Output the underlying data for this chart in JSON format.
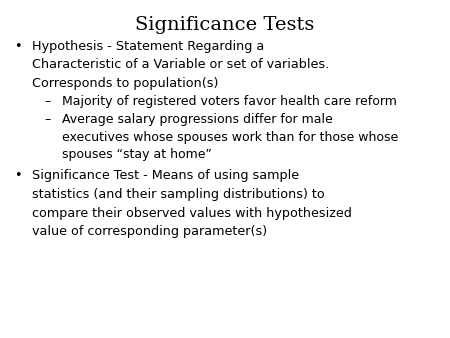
{
  "title": "Significance Tests",
  "background_color": "#ffffff",
  "text_color": "#000000",
  "title_fontsize": 14,
  "body_fontsize": 9.2,
  "sub_fontsize": 9.0,
  "title_font": "DejaVu Serif",
  "body_font": "DejaVu Sans",
  "content": [
    {
      "type": "bullet",
      "indent": 0,
      "bullet": "•",
      "lines": [
        "Hypothesis - Statement Regarding a",
        "Characteristic of a Variable or set of variables.",
        "Corresponds to population(s)"
      ]
    },
    {
      "type": "bullet",
      "indent": 1,
      "bullet": "–",
      "lines": [
        "Majority of registered voters favor health care reform"
      ]
    },
    {
      "type": "bullet",
      "indent": 1,
      "bullet": "–",
      "lines": [
        "Average salary progressions differ for male",
        "executives whose spouses work than for those whose",
        "spouses “stay at home”"
      ]
    },
    {
      "type": "bullet",
      "indent": 0,
      "bullet": "•",
      "lines": [
        "Significance Test - Means of using sample",
        "statistics (and their sampling distributions) to",
        "compare their observed values with hypothesized",
        "value of corresponding parameter(s)"
      ]
    }
  ]
}
